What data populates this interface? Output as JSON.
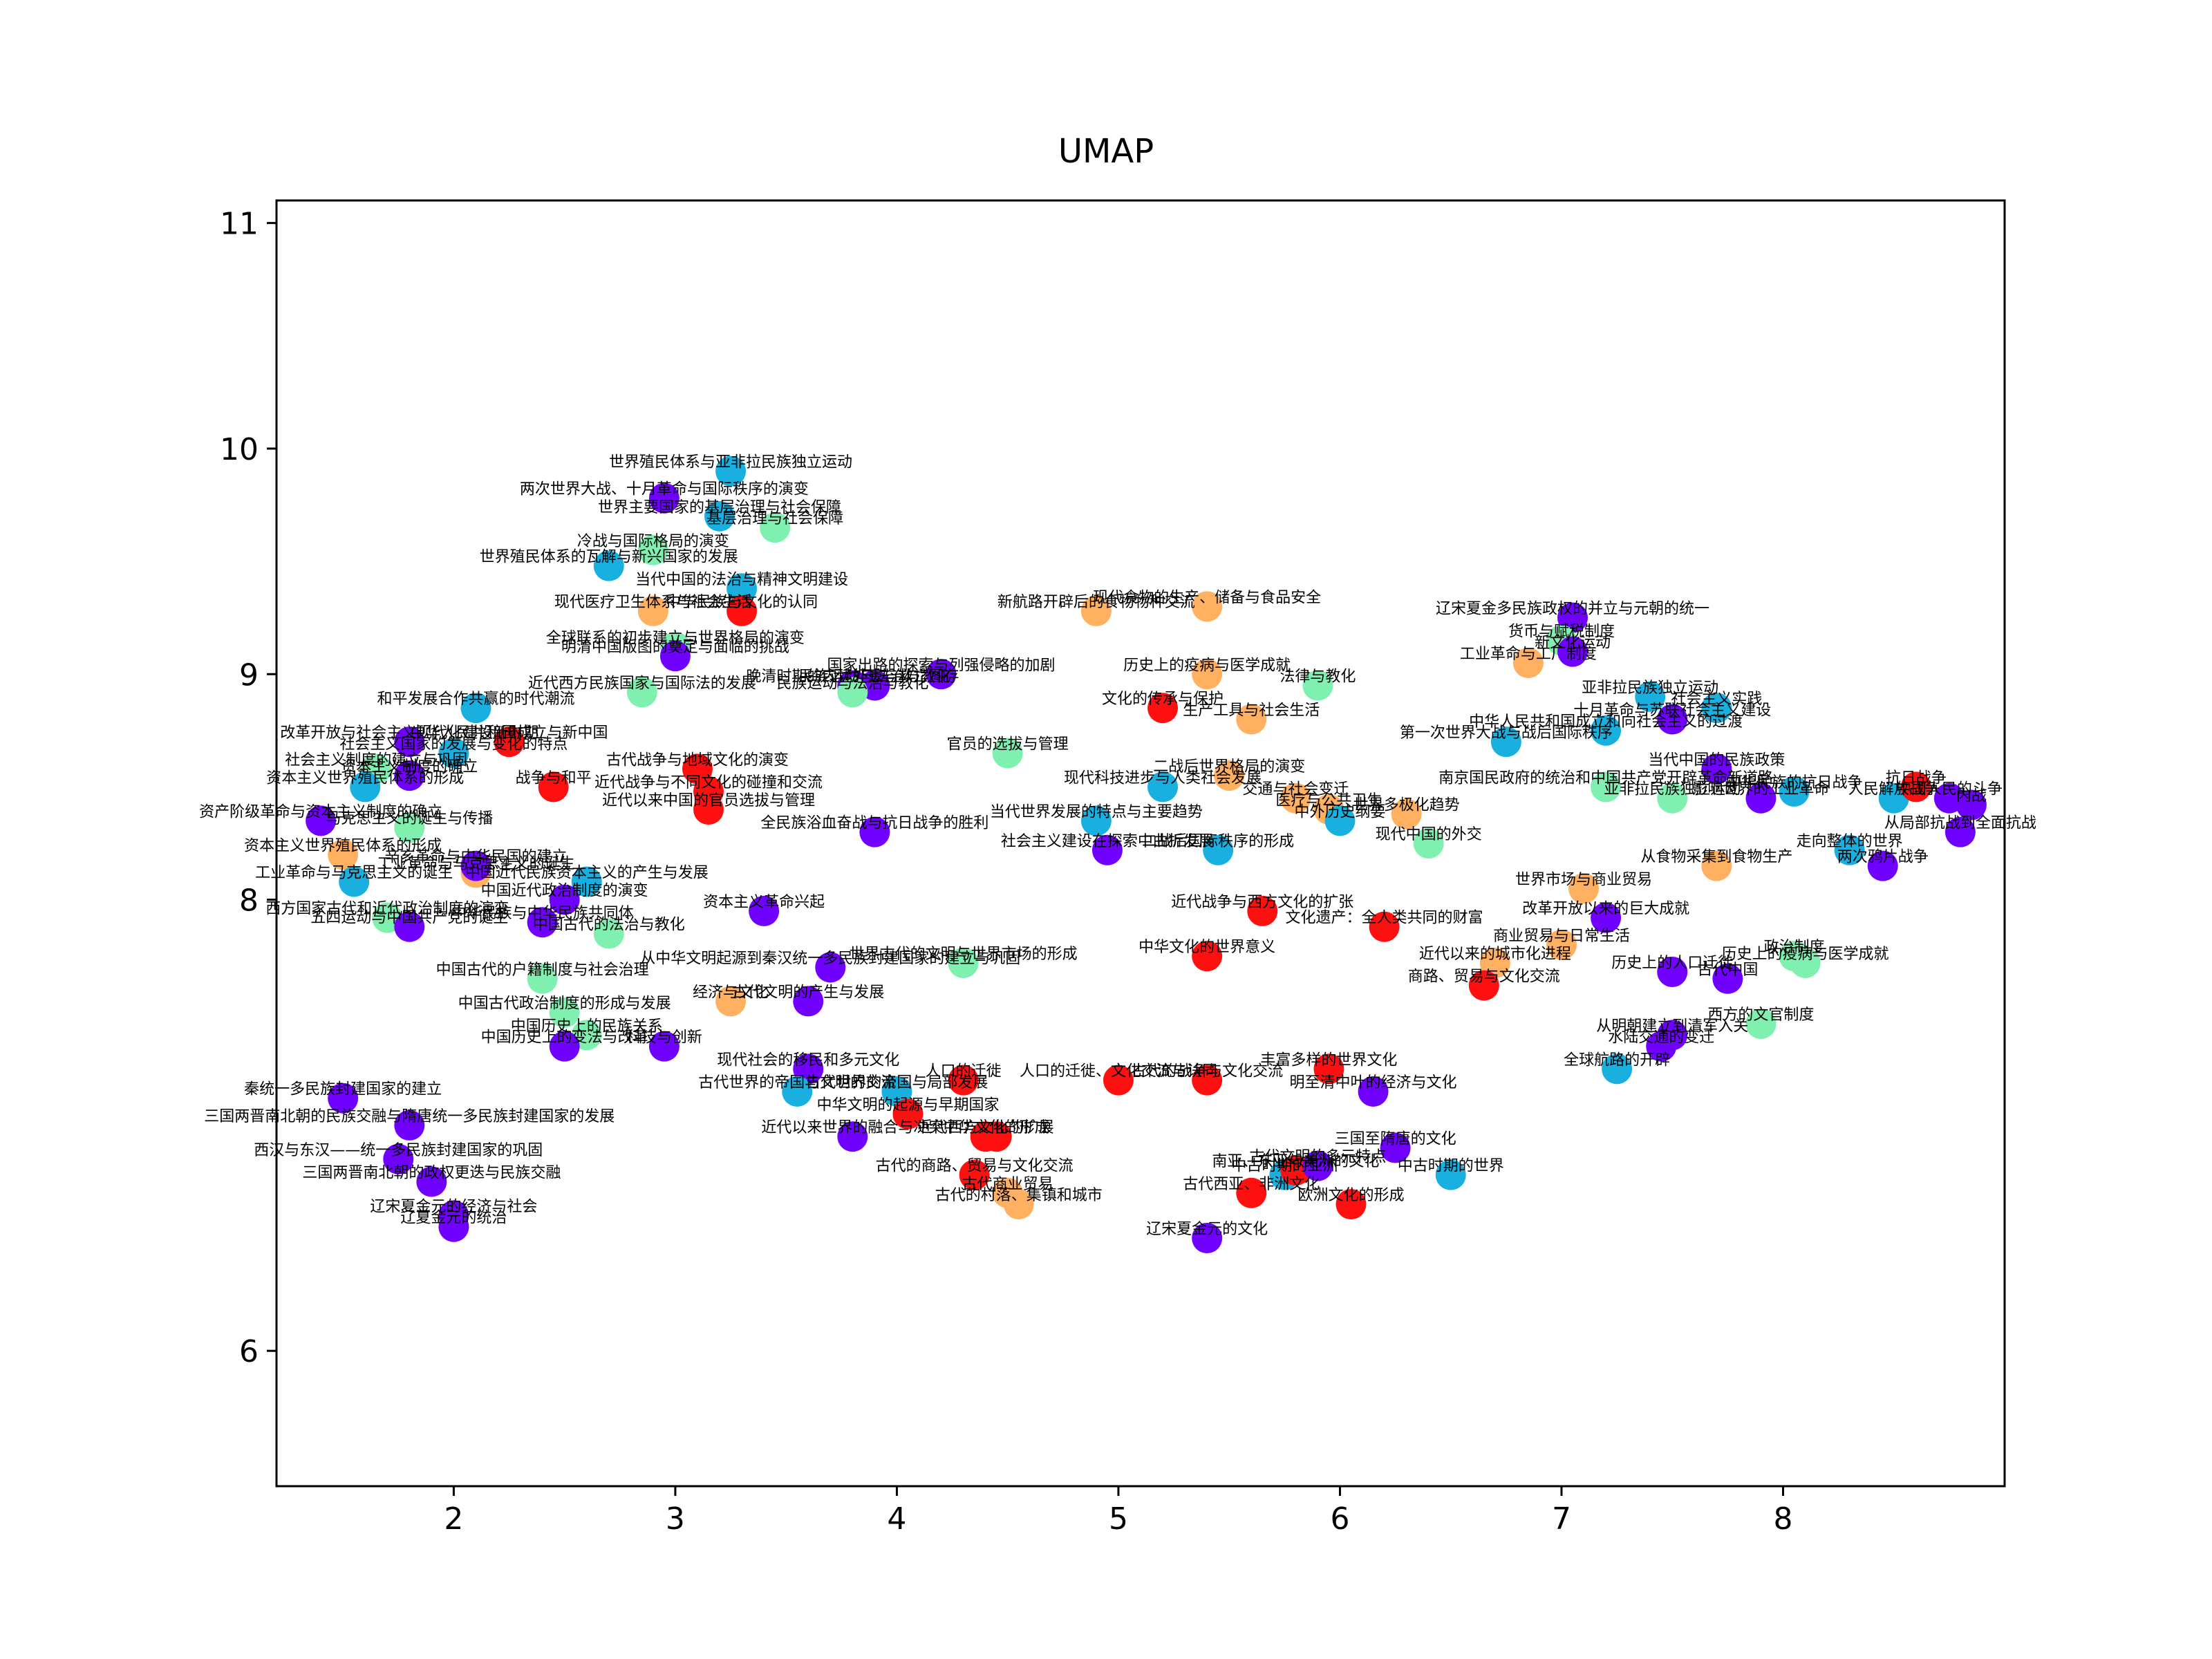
{
  "chart_data": {
    "type": "scatter",
    "title": "UMAP",
    "xlabel": "",
    "ylabel": "",
    "xlim": [
      1.2,
      9.0
    ],
    "ylim": [
      5.4,
      11.1
    ],
    "xticks": [
      2,
      3,
      4,
      5,
      6,
      7,
      8
    ],
    "yticks": [
      6,
      8,
      9,
      10,
      11
    ],
    "grid": false,
    "colors": {
      "purple": "#7000ff",
      "blue": "#19b0e0",
      "green": "#80f0b0",
      "orange": "#ffb060",
      "red": "#ff1010"
    },
    "points": [
      {
        "x": 3.25,
        "y": 9.9,
        "label": "世界殖民体系与亚非拉民族独立运动",
        "c": "blue"
      },
      {
        "x": 2.95,
        "y": 9.78,
        "label": "两次世界大战、十月革命与国际秩序的演变",
        "c": "purple"
      },
      {
        "x": 3.45,
        "y": 9.65,
        "label": "基层治理与社会保障",
        "c": "green"
      },
      {
        "x": 3.2,
        "y": 9.7,
        "label": "世界主要国家的基层治理与社会保障",
        "c": "blue"
      },
      {
        "x": 2.9,
        "y": 9.55,
        "label": "冷战与国际格局的演变",
        "c": "green"
      },
      {
        "x": 2.7,
        "y": 9.48,
        "label": "世界殖民体系的瓦解与新兴国家的发展",
        "c": "blue"
      },
      {
        "x": 3.3,
        "y": 9.38,
        "label": "当代中国的法治与精神文明建设",
        "c": "blue"
      },
      {
        "x": 3.3,
        "y": 9.28,
        "label": "中华民族与文化的认同",
        "c": "red"
      },
      {
        "x": 2.9,
        "y": 9.28,
        "label": "现代医疗卫生体系与社会生活",
        "c": "orange"
      },
      {
        "x": 3.0,
        "y": 9.12,
        "label": "全球联系的初步建立与世界格局的演变",
        "c": "green"
      },
      {
        "x": 3.0,
        "y": 9.08,
        "label": "明清中国版图的奠定与面临的挑战",
        "c": "purple"
      },
      {
        "x": 3.8,
        "y": 8.95,
        "label": "晚清时期的内忧外患与救亡图存",
        "c": "purple"
      },
      {
        "x": 4.2,
        "y": 9.0,
        "label": "国家出路的探索与列强侵略的加剧",
        "c": "purple"
      },
      {
        "x": 3.9,
        "y": 8.95,
        "label": "民族运动与法治与教化",
        "c": "purple"
      },
      {
        "x": 3.8,
        "y": 8.92,
        "label": "民族运动与法治与教化",
        "c": "green"
      },
      {
        "x": 2.85,
        "y": 8.92,
        "label": "近代西方民族国家与国际法的发展",
        "c": "green"
      },
      {
        "x": 2.1,
        "y": 8.85,
        "label": "和平发展合作共赢的时代潮流",
        "c": "blue"
      },
      {
        "x": 4.9,
        "y": 9.28,
        "label": "新航路开辟后的食物物种交流",
        "c": "orange"
      },
      {
        "x": 5.4,
        "y": 9.3,
        "label": "现代食物的生产、储备与食品安全",
        "c": "orange"
      },
      {
        "x": 5.4,
        "y": 9.0,
        "label": "历史上的疫病与医学成就",
        "c": "orange"
      },
      {
        "x": 5.9,
        "y": 8.95,
        "label": "法律与教化",
        "c": "green"
      },
      {
        "x": 5.2,
        "y": 8.85,
        "label": "文化的传承与保护",
        "c": "red"
      },
      {
        "x": 5.6,
        "y": 8.8,
        "label": "生产工具与社会生活",
        "c": "orange"
      },
      {
        "x": 7.05,
        "y": 9.25,
        "label": "辽宋夏金多民族政权的并立与元朝的统一",
        "c": "purple"
      },
      {
        "x": 7.0,
        "y": 9.15,
        "label": "货币与赋税制度",
        "c": "green"
      },
      {
        "x": 7.05,
        "y": 9.1,
        "label": "新文化运动",
        "c": "purple"
      },
      {
        "x": 6.85,
        "y": 9.05,
        "label": "工业革命与工厂制度",
        "c": "orange"
      },
      {
        "x": 7.4,
        "y": 8.9,
        "label": "亚非拉民族独立运动",
        "c": "blue"
      },
      {
        "x": 7.7,
        "y": 8.85,
        "label": "社会主义实践",
        "c": "blue"
      },
      {
        "x": 7.5,
        "y": 8.8,
        "label": "十月革命与苏联社会主义建设",
        "c": "purple"
      },
      {
        "x": 7.2,
        "y": 8.75,
        "label": "中华人民共和国成立和向社会主义的过渡",
        "c": "blue"
      },
      {
        "x": 6.75,
        "y": 8.7,
        "label": "第一次世界大战与战后国际秩序",
        "c": "blue"
      },
      {
        "x": 7.7,
        "y": 8.58,
        "label": "当代中国的民族政策",
        "c": "purple"
      },
      {
        "x": 7.2,
        "y": 8.5,
        "label": "南京国民政府的统治和中国共产党开辟革命新道路",
        "c": "green"
      },
      {
        "x": 7.5,
        "y": 8.45,
        "label": "亚非拉民族独立运动",
        "c": "green"
      },
      {
        "x": 7.9,
        "y": 8.45,
        "label": "影响世界的工业革命",
        "c": "purple"
      },
      {
        "x": 8.05,
        "y": 8.48,
        "label": "中华民族的抗日战争",
        "c": "blue"
      },
      {
        "x": 8.5,
        "y": 8.45,
        "label": "人民解放战争",
        "c": "blue"
      },
      {
        "x": 8.6,
        "y": 8.5,
        "label": "抗日战争",
        "c": "red"
      },
      {
        "x": 8.75,
        "y": 8.45,
        "label": "中国人民的斗争",
        "c": "purple"
      },
      {
        "x": 8.85,
        "y": 8.42,
        "label": "内战",
        "c": "purple"
      },
      {
        "x": 8.8,
        "y": 8.3,
        "label": "从局部抗战到全面抗战",
        "c": "purple"
      },
      {
        "x": 8.45,
        "y": 8.15,
        "label": "两次鸦片战争",
        "c": "purple"
      },
      {
        "x": 8.3,
        "y": 8.22,
        "label": "走向整体的世界",
        "c": "blue"
      },
      {
        "x": 1.8,
        "y": 8.7,
        "label": "改革开放与社会主义现代化建设新时期",
        "c": "purple"
      },
      {
        "x": 2.25,
        "y": 8.7,
        "label": "中华人民共和国成立与新中国",
        "c": "red"
      },
      {
        "x": 2.0,
        "y": 8.65,
        "label": "社会主义国家的发展与变化的特点",
        "c": "blue"
      },
      {
        "x": 1.65,
        "y": 8.58,
        "label": "社会主义制度的建立与巩固",
        "c": "green"
      },
      {
        "x": 1.8,
        "y": 8.55,
        "label": "资本主义制度的确立",
        "c": "purple"
      },
      {
        "x": 1.6,
        "y": 8.5,
        "label": "资本主义世界殖民体系的形成",
        "c": "blue"
      },
      {
        "x": 2.45,
        "y": 8.5,
        "label": "战争与和平",
        "c": "red"
      },
      {
        "x": 3.1,
        "y": 8.58,
        "label": "古代战争与地域文化的演变",
        "c": "red"
      },
      {
        "x": 3.15,
        "y": 8.48,
        "label": "近代战争与不同文化的碰撞和交流",
        "c": "red"
      },
      {
        "x": 1.4,
        "y": 8.35,
        "label": "资产阶级革命与资本主义制度的确立",
        "c": "purple"
      },
      {
        "x": 1.8,
        "y": 8.32,
        "label": "马克思主义的诞生与传播",
        "c": "green"
      },
      {
        "x": 1.5,
        "y": 8.2,
        "label": "资本主义世界殖民体系的形成",
        "c": "orange"
      },
      {
        "x": 2.1,
        "y": 8.12,
        "label": "工业革命与马克思主义的诞生",
        "c": "orange"
      },
      {
        "x": 1.55,
        "y": 8.08,
        "label": "工业革命与马克思主义的诞生",
        "c": "blue"
      },
      {
        "x": 2.1,
        "y": 8.15,
        "label": "辛亥革命与中华民国的建立",
        "c": "purple"
      },
      {
        "x": 2.6,
        "y": 8.08,
        "label": "中国近代民族资本主义的产生与发展",
        "c": "blue"
      },
      {
        "x": 2.5,
        "y": 8.0,
        "label": "中国近代政治制度的演变",
        "c": "purple"
      },
      {
        "x": 3.4,
        "y": 7.95,
        "label": "资本主义革命兴起",
        "c": "purple"
      },
      {
        "x": 1.7,
        "y": 7.92,
        "label": "西方国家古代和近代政治制度的演变",
        "c": "green"
      },
      {
        "x": 1.8,
        "y": 7.88,
        "label": "五四运动与中国共产党的诞生",
        "c": "purple"
      },
      {
        "x": 2.4,
        "y": 7.9,
        "label": "中华民族与中华民族共同体",
        "c": "purple"
      },
      {
        "x": 2.7,
        "y": 7.85,
        "label": "中国古代的法治与教化",
        "c": "green"
      },
      {
        "x": 3.9,
        "y": 8.3,
        "label": "全民族浴血奋战与抗日战争的胜利",
        "c": "purple"
      },
      {
        "x": 3.15,
        "y": 8.4,
        "label": "近代以来中国的官员选拔与管理",
        "c": "red"
      },
      {
        "x": 4.5,
        "y": 8.65,
        "label": "官员的选拔与管理",
        "c": "green"
      },
      {
        "x": 4.9,
        "y": 8.35,
        "label": "当代世界发展的特点与主要趋势",
        "c": "blue"
      },
      {
        "x": 5.2,
        "y": 8.5,
        "label": "现代科技进步与人类社会发展",
        "c": "blue"
      },
      {
        "x": 5.5,
        "y": 8.55,
        "label": "二战后世界格局的演变",
        "c": "orange"
      },
      {
        "x": 5.8,
        "y": 8.45,
        "label": "交通与社会变迁",
        "c": "orange"
      },
      {
        "x": 5.95,
        "y": 8.4,
        "label": "医疗与公共卫生",
        "c": "orange"
      },
      {
        "x": 6.0,
        "y": 8.35,
        "label": "中外历史纲要",
        "c": "blue"
      },
      {
        "x": 6.3,
        "y": 8.38,
        "label": "世界多极化趋势",
        "c": "orange"
      },
      {
        "x": 6.4,
        "y": 8.25,
        "label": "现代中国的外交",
        "c": "green"
      },
      {
        "x": 4.95,
        "y": 8.22,
        "label": "社会主义建设在探索中曲折发展",
        "c": "purple"
      },
      {
        "x": 5.45,
        "y": 8.22,
        "label": "二战后国际秩序的形成",
        "c": "blue"
      },
      {
        "x": 5.65,
        "y": 7.95,
        "label": "近代战争与西方文化的扩张",
        "c": "red"
      },
      {
        "x": 6.2,
        "y": 7.88,
        "label": "文化遗产：全人类共同的财富",
        "c": "red"
      },
      {
        "x": 5.4,
        "y": 7.75,
        "label": "中华文化的世界意义",
        "c": "red"
      },
      {
        "x": 7.1,
        "y": 8.05,
        "label": "世界市场与商业贸易",
        "c": "orange"
      },
      {
        "x": 7.7,
        "y": 8.15,
        "label": "从食物采集到食物生产",
        "c": "orange"
      },
      {
        "x": 7.2,
        "y": 7.92,
        "label": "改革开放以来的巨大成就",
        "c": "purple"
      },
      {
        "x": 7.0,
        "y": 7.8,
        "label": "商业贸易与日常生活",
        "c": "orange"
      },
      {
        "x": 6.7,
        "y": 7.72,
        "label": "近代以来的城市化进程",
        "c": "orange"
      },
      {
        "x": 6.65,
        "y": 7.62,
        "label": "商路、贸易与文化交流",
        "c": "red"
      },
      {
        "x": 7.5,
        "y": 7.68,
        "label": "历史上的人口迁徙",
        "c": "purple"
      },
      {
        "x": 7.75,
        "y": 7.65,
        "label": "古代中国",
        "c": "purple"
      },
      {
        "x": 8.1,
        "y": 7.72,
        "label": "历史上的疫病与医学成就",
        "c": "green"
      },
      {
        "x": 8.05,
        "y": 7.75,
        "label": "政治制度",
        "c": "green"
      },
      {
        "x": 7.9,
        "y": 7.45,
        "label": "西方的文官制度",
        "c": "green"
      },
      {
        "x": 7.45,
        "y": 7.35,
        "label": "水陆交通的变迁",
        "c": "purple"
      },
      {
        "x": 7.5,
        "y": 7.4,
        "label": "从明朝建立到清军入关",
        "c": "purple"
      },
      {
        "x": 7.25,
        "y": 7.25,
        "label": "全球航路的开辟",
        "c": "blue"
      },
      {
        "x": 2.4,
        "y": 7.65,
        "label": "中国古代的户籍制度与社会治理",
        "c": "green"
      },
      {
        "x": 3.7,
        "y": 7.7,
        "label": "从中华文明起源到秦汉统一多民族封建国家的建立与巩固",
        "c": "purple"
      },
      {
        "x": 4.3,
        "y": 7.72,
        "label": "世界古代的文明与世界市场的形成",
        "c": "green"
      },
      {
        "x": 2.5,
        "y": 7.5,
        "label": "中国古代政治制度的形成与发展",
        "c": "green"
      },
      {
        "x": 3.25,
        "y": 7.55,
        "label": "经济与文化",
        "c": "orange"
      },
      {
        "x": 3.6,
        "y": 7.55,
        "label": "古代文明的产生与发展",
        "c": "purple"
      },
      {
        "x": 2.6,
        "y": 7.4,
        "label": "中国历史上的民族关系",
        "c": "green"
      },
      {
        "x": 2.5,
        "y": 7.35,
        "label": "中国历史上的变法与改革",
        "c": "purple"
      },
      {
        "x": 2.95,
        "y": 7.35,
        "label": "科技与创新",
        "c": "purple"
      },
      {
        "x": 3.6,
        "y": 7.25,
        "label": "现代社会的移民和多元文化",
        "c": "purple"
      },
      {
        "x": 3.55,
        "y": 7.15,
        "label": "古代世界的帝国与文明的交流",
        "c": "blue"
      },
      {
        "x": 4.0,
        "y": 7.15,
        "label": "古代世界的帝国与局部发展",
        "c": "blue"
      },
      {
        "x": 4.3,
        "y": 7.2,
        "label": "人口的迁徙",
        "c": "red"
      },
      {
        "x": 5.0,
        "y": 7.2,
        "label": "人口的迁徙、文化交流与认同",
        "c": "red"
      },
      {
        "x": 5.4,
        "y": 7.2,
        "label": "古代的战争与文化交流",
        "c": "red"
      },
      {
        "x": 5.95,
        "y": 7.25,
        "label": "丰富多样的世界文化",
        "c": "red"
      },
      {
        "x": 6.15,
        "y": 7.15,
        "label": "明至清中叶的经济与文化",
        "c": "purple"
      },
      {
        "x": 1.5,
        "y": 7.12,
        "label": "秦统一多民族封建国家的建立",
        "c": "purple"
      },
      {
        "x": 1.8,
        "y": 7.0,
        "label": "三国两晋南北朝的民族交融与隋唐统一多民族封建国家的发展",
        "c": "purple"
      },
      {
        "x": 4.05,
        "y": 7.05,
        "label": "中华文明的起源与早期国家",
        "c": "red"
      },
      {
        "x": 3.8,
        "y": 6.95,
        "label": "近代以来世界的融合与冲突",
        "c": "purple"
      },
      {
        "x": 4.4,
        "y": 6.95,
        "label": "近代西方文化的扩展",
        "c": "red"
      },
      {
        "x": 4.45,
        "y": 6.95,
        "label": "中华文化的形成",
        "c": "red"
      },
      {
        "x": 1.75,
        "y": 6.85,
        "label": "西汉与东汉——统一多民族封建国家的巩固",
        "c": "purple"
      },
      {
        "x": 1.9,
        "y": 6.75,
        "label": "三国两晋南北朝的政权更迭与民族交融",
        "c": "purple"
      },
      {
        "x": 2.0,
        "y": 6.6,
        "label": "辽宋夏金元的经济与社会",
        "c": "purple"
      },
      {
        "x": 2.0,
        "y": 6.55,
        "label": "辽夏金元的统治",
        "c": "purple"
      },
      {
        "x": 4.35,
        "y": 6.78,
        "label": "古代的商路、贸易与文化交流",
        "c": "red"
      },
      {
        "x": 4.55,
        "y": 6.65,
        "label": "古代的村落、集镇和城市",
        "c": "orange"
      },
      {
        "x": 4.5,
        "y": 6.7,
        "label": "古代商业贸易",
        "c": "orange"
      },
      {
        "x": 5.6,
        "y": 6.7,
        "label": "古代西亚、非洲文化",
        "c": "red"
      },
      {
        "x": 5.75,
        "y": 6.78,
        "label": "中古时期的亚洲",
        "c": "blue"
      },
      {
        "x": 5.8,
        "y": 6.8,
        "label": "南亚、东亚与美洲的文化",
        "c": "red"
      },
      {
        "x": 5.9,
        "y": 6.82,
        "label": "古代文明的多元特点",
        "c": "purple"
      },
      {
        "x": 6.25,
        "y": 6.9,
        "label": "三国至隋唐的文化",
        "c": "purple"
      },
      {
        "x": 6.5,
        "y": 6.78,
        "label": "中古时期的世界",
        "c": "blue"
      },
      {
        "x": 6.05,
        "y": 6.65,
        "label": "欧洲文化的形成",
        "c": "red"
      },
      {
        "x": 5.4,
        "y": 6.5,
        "label": "辽宋夏金元的文化",
        "c": "purple"
      }
    ]
  }
}
